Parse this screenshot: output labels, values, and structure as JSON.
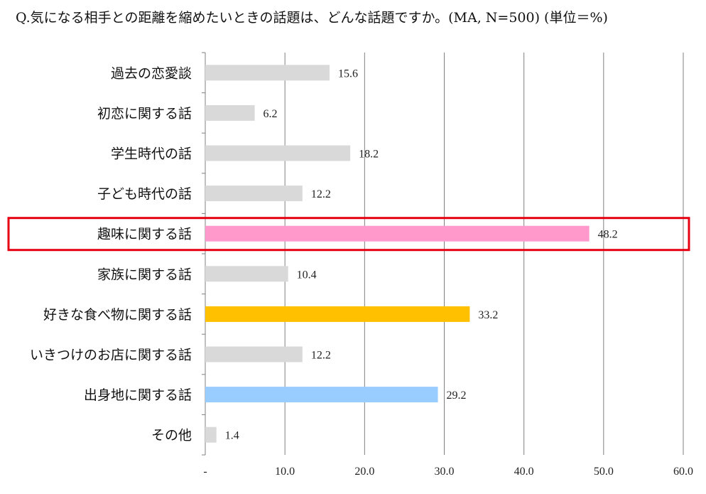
{
  "title": "Q.気になる相手との距離を縮めたいときの話題は、どんな話題ですか。(MA, N=500) (単位＝%)",
  "colors": {
    "default_bar": "#d9d9d9",
    "highlight_pink": "#ff99cc",
    "highlight_gold": "#ffc000",
    "highlight_blue": "#99ccff",
    "highlight_box": "#e60012",
    "grid": "#7f7f7f"
  },
  "chart_data": {
    "type": "bar",
    "orientation": "horizontal",
    "title": "Q.気になる相手との距離を縮めたいときの話題は、どんな話題ですか。(MA, N=500) (単位＝%)",
    "categories": [
      "過去の恋愛談",
      "初恋に関する話",
      "学生時代の話",
      "子ども時代の話",
      "趣味に関する話",
      "家族に関する話",
      "好きな食べ物に関する話",
      "いきつけのお店に関する話",
      "出身地に関する話",
      "その他"
    ],
    "values": [
      15.6,
      6.2,
      18.2,
      12.2,
      48.2,
      10.4,
      33.2,
      12.2,
      29.2,
      1.4
    ],
    "value_labels": [
      "15.6",
      "6.2",
      "18.2",
      "12.2",
      "48.2",
      "10.4",
      "33.2",
      "12.2",
      "29.2",
      "1.4"
    ],
    "bar_colors": [
      "#d9d9d9",
      "#d9d9d9",
      "#d9d9d9",
      "#d9d9d9",
      "#ff99cc",
      "#d9d9d9",
      "#ffc000",
      "#d9d9d9",
      "#99ccff",
      "#d9d9d9"
    ],
    "xlim": [
      0,
      60
    ],
    "xticks": [
      0,
      10,
      20,
      30,
      40,
      50,
      60
    ],
    "xtick_labels": [
      "-",
      "10.0",
      "20.0",
      "30.0",
      "40.0",
      "50.0",
      "60.0"
    ],
    "grid": true,
    "highlighted_category": "趣味に関する話",
    "xlabel": "",
    "ylabel": ""
  }
}
